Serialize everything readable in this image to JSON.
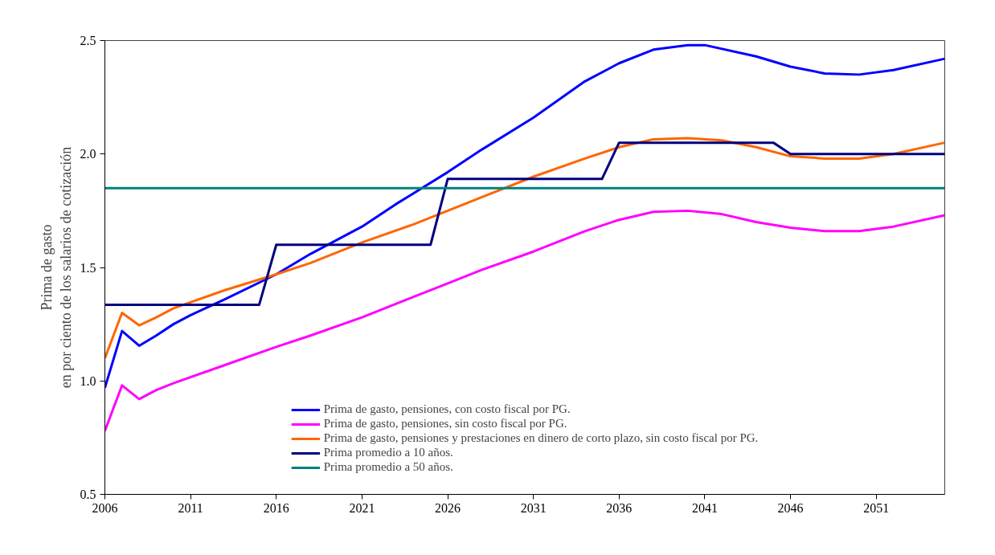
{
  "chart_data": {
    "type": "line",
    "ylabel": "Prima de gasto\nen por ciento de los salarios de cotización",
    "xlim": [
      2006,
      2055
    ],
    "xticks": [
      2006,
      2011,
      2016,
      2021,
      2026,
      2031,
      2036,
      2041,
      2046,
      2051
    ],
    "ylim": [
      0.5,
      2.5
    ],
    "yticks": [
      {
        "value": 0.5,
        "label": "0.5"
      },
      {
        "value": 1,
        "label": "1.0"
      },
      {
        "value": 1.5,
        "label": "1.5"
      },
      {
        "value": 2,
        "label": "2.0"
      },
      {
        "value": 2.5,
        "label": "2.5"
      }
    ],
    "grid": false,
    "legend": "bottom",
    "marker": "none",
    "line_style": "solid",
    "series": [
      {
        "name": "Prima de gasto, pensiones, con costo fiscal por PG.",
        "color": "#0000ff",
        "x": [
          2006,
          2007,
          2008,
          2009,
          2010,
          2011,
          2013,
          2016,
          2018,
          2021,
          2023,
          2026,
          2028,
          2031,
          2034,
          2036,
          2038,
          2040,
          2041,
          2044,
          2046,
          2048,
          2050,
          2052,
          2055
        ],
        "values": [
          0.97,
          1.22,
          1.155,
          1.2,
          1.25,
          1.29,
          1.36,
          1.47,
          1.56,
          1.68,
          1.78,
          1.92,
          2.02,
          2.16,
          2.32,
          2.4,
          2.46,
          2.48,
          2.48,
          2.43,
          2.385,
          2.355,
          2.35,
          2.37,
          2.42
        ]
      },
      {
        "name": "Prima de gasto, pensiones, sin costo fiscal por PG.",
        "color": "#ff00ff",
        "x": [
          2006,
          2007,
          2008,
          2009,
          2010,
          2013,
          2016,
          2018,
          2021,
          2024,
          2026,
          2028,
          2031,
          2034,
          2036,
          2038,
          2040,
          2042,
          2044,
          2046,
          2048,
          2050,
          2052,
          2055
        ],
        "values": [
          0.78,
          0.98,
          0.92,
          0.96,
          0.99,
          1.07,
          1.15,
          1.2,
          1.28,
          1.37,
          1.43,
          1.49,
          1.57,
          1.66,
          1.71,
          1.745,
          1.75,
          1.735,
          1.7,
          1.675,
          1.66,
          1.66,
          1.68,
          1.73
        ]
      },
      {
        "name": "Prima de gasto, pensiones y prestaciones en dinero de corto plazo, sin costo fiscal por PG.",
        "color": "#ff6600",
        "x": [
          2006,
          2007,
          2008,
          2009,
          2010,
          2013,
          2016,
          2018,
          2021,
          2024,
          2026,
          2028,
          2031,
          2034,
          2036,
          2038,
          2040,
          2042,
          2044,
          2046,
          2048,
          2050,
          2052,
          2055
        ],
        "values": [
          1.1,
          1.3,
          1.245,
          1.28,
          1.32,
          1.4,
          1.47,
          1.52,
          1.61,
          1.69,
          1.75,
          1.81,
          1.9,
          1.98,
          2.03,
          2.065,
          2.07,
          2.06,
          2.03,
          1.99,
          1.98,
          1.98,
          2.0,
          2.05
        ]
      },
      {
        "name": "Prima promedio a 10 años.",
        "color": "#000080",
        "x": [
          2006,
          2015,
          2016,
          2025,
          2026,
          2035,
          2036,
          2045,
          2046,
          2055
        ],
        "values": [
          1.335,
          1.335,
          1.6,
          1.6,
          1.89,
          1.89,
          2.05,
          2.05,
          2.0,
          2.0
        ]
      },
      {
        "name": "Prima promedio a 50 años.",
        "color": "#008080",
        "x": [
          2006,
          2055
        ],
        "values": [
          1.85,
          1.85
        ]
      }
    ]
  }
}
